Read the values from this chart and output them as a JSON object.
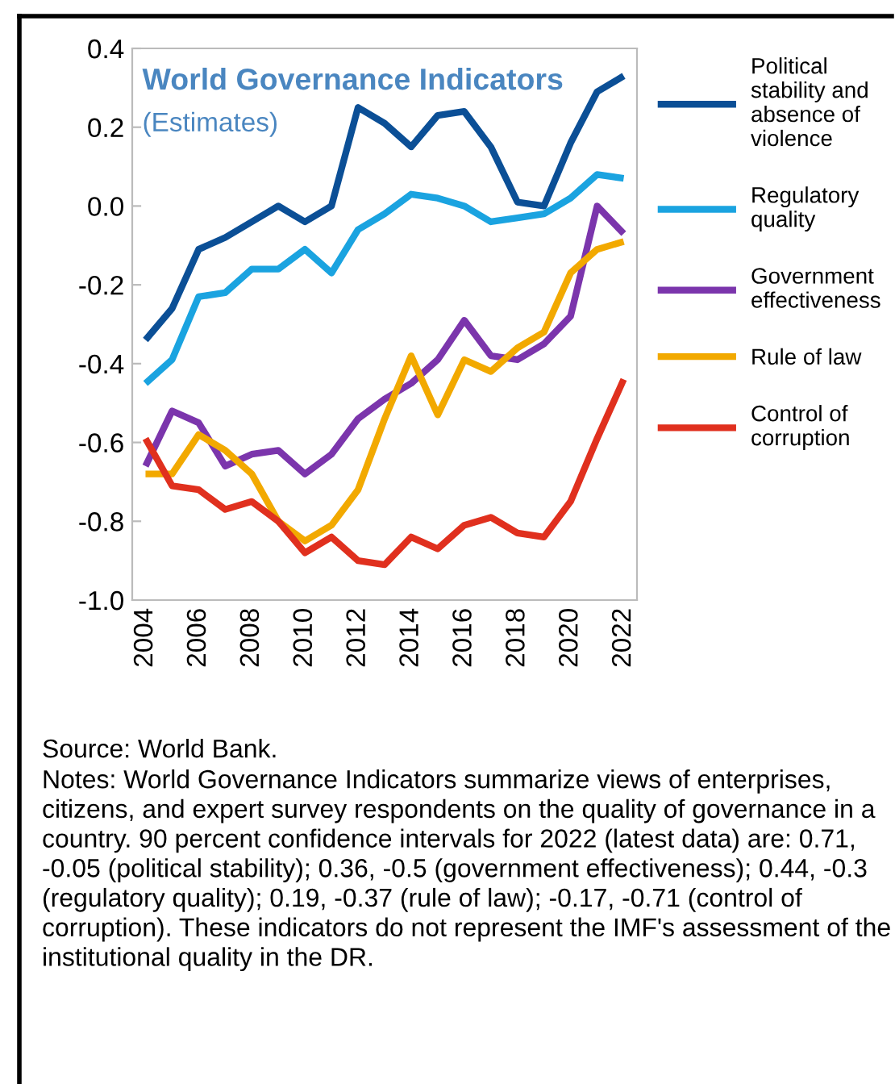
{
  "chart_data": {
    "type": "line",
    "title": "World Governance Indicators",
    "subtitle": "(Estimates)",
    "x": [
      2004,
      2005,
      2006,
      2007,
      2008,
      2009,
      2010,
      2011,
      2012,
      2013,
      2014,
      2015,
      2016,
      2017,
      2018,
      2019,
      2020,
      2021,
      2022
    ],
    "series": [
      {
        "name": "Political stability and absence of violence",
        "color": "#0b4f96",
        "values": [
          -0.34,
          -0.26,
          -0.11,
          -0.08,
          -0.04,
          0.0,
          -0.04,
          0.0,
          0.25,
          0.21,
          0.15,
          0.23,
          0.24,
          0.15,
          0.01,
          0.0,
          0.16,
          0.29,
          0.33
        ]
      },
      {
        "name": "Regulatory quality",
        "color": "#1aa3e0",
        "values": [
          -0.45,
          -0.39,
          -0.23,
          -0.22,
          -0.16,
          -0.16,
          -0.11,
          -0.17,
          -0.06,
          -0.02,
          0.03,
          0.02,
          0.0,
          -0.04,
          -0.03,
          -0.02,
          0.02,
          0.08,
          0.07
        ]
      },
      {
        "name": "Government effectiveness",
        "color": "#7b35ac",
        "values": [
          -0.66,
          -0.52,
          -0.55,
          -0.66,
          -0.63,
          -0.62,
          -0.68,
          -0.63,
          -0.54,
          -0.49,
          -0.45,
          -0.39,
          -0.29,
          -0.38,
          -0.39,
          -0.35,
          -0.28,
          0.0,
          -0.07
        ]
      },
      {
        "name": "Rule of law",
        "color": "#f2a900",
        "values": [
          -0.68,
          -0.68,
          -0.58,
          -0.62,
          -0.68,
          -0.8,
          -0.85,
          -0.81,
          -0.72,
          -0.54,
          -0.38,
          -0.53,
          -0.39,
          -0.42,
          -0.36,
          -0.32,
          -0.17,
          -0.11,
          -0.09
        ]
      },
      {
        "name": "Control of corruption",
        "color": "#e0301e",
        "values": [
          -0.59,
          -0.71,
          -0.72,
          -0.77,
          -0.75,
          -0.8,
          -0.88,
          -0.84,
          -0.9,
          -0.91,
          -0.84,
          -0.87,
          -0.81,
          -0.79,
          -0.83,
          -0.84,
          -0.75,
          -0.59,
          -0.44
        ]
      }
    ],
    "xlim": [
      2003.5,
      2022.5
    ],
    "xticks": [
      2004,
      2006,
      2008,
      2010,
      2012,
      2014,
      2016,
      2018,
      2020,
      2022
    ],
    "ylim": [
      -1.0,
      0.4
    ],
    "yticks": [
      {
        "value": -1.0,
        "label": "-1.0"
      },
      -0.8,
      -0.6,
      -0.4,
      -0.2,
      {
        "value": 0.0,
        "label": "0.0"
      },
      0.2,
      0.4
    ],
    "legend": "right",
    "grid": false,
    "marker": "none",
    "line_style": "solid",
    "annotations": [
      "Source: World Bank.",
      "Notes: World Governance Indicators summarize views of enterprises, citizens, and expert survey respondents on the quality of governance in a country. 90 percent confidence intervals for 2022 (latest data) are: 0.71, -0.05 (political stability); 0.36, -0.5 (government effectiveness); 0.44, -0.3 (regulatory quality); 0.19, -0.37 (rule of law); -0.17, -0.71 (control of corruption). These indicators do not represent the IMF's assessment of the institutional quality in the DR."
    ]
  }
}
